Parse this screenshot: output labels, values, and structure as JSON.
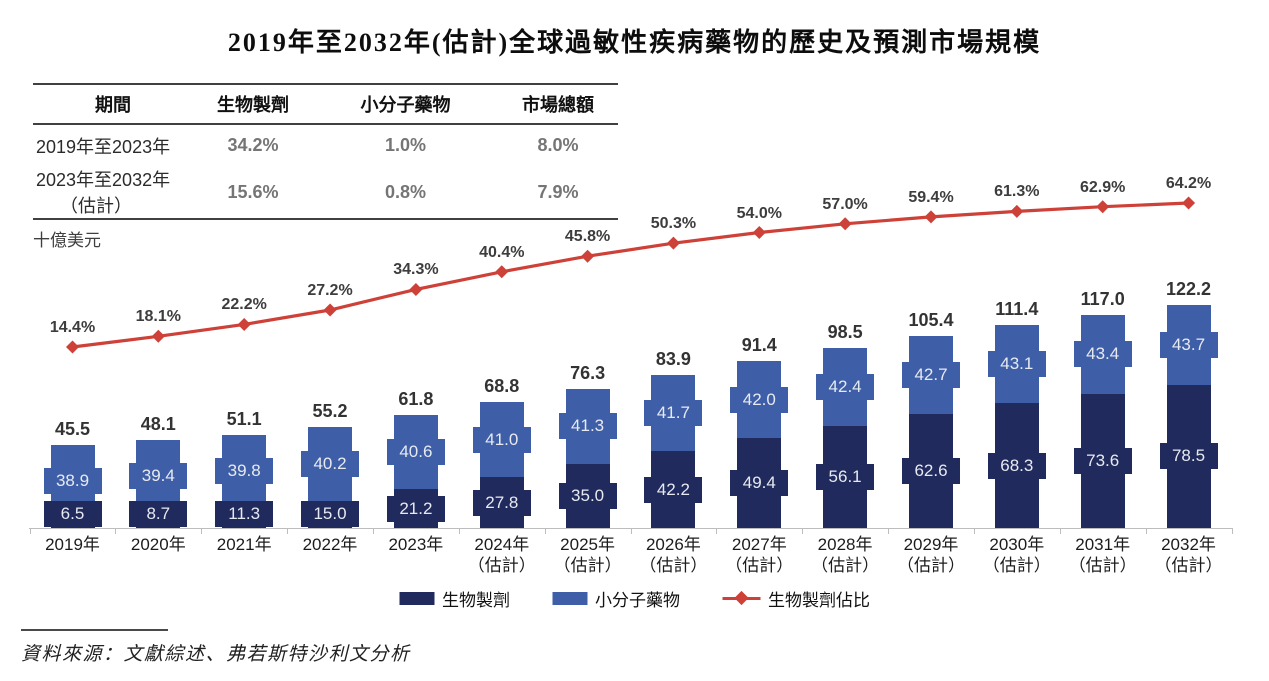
{
  "title": "2019年至2032年(估計)全球過敏性疾病藥物的歷史及預測市場規模",
  "table": {
    "headers": [
      "期間",
      "生物製劑",
      "小分子藥物",
      "市場總額"
    ],
    "rows": [
      {
        "period": "2019年至2023年",
        "period_line2": "",
        "biologics": "34.2%",
        "small_molecule": "1.0%",
        "total": "8.0%"
      },
      {
        "period": "2023年至2032年",
        "period_line2": "（估計）",
        "biologics": "15.6%",
        "small_molecule": "0.8%",
        "total": "7.9%"
      }
    ]
  },
  "unit_label": "十億美元",
  "legend": {
    "biologics": "生物製劑",
    "small_molecule": "小分子藥物",
    "biologics_share": "生物製劑佔比"
  },
  "source": "資料來源：文獻綜述、弗若斯特沙利文分析",
  "chart_data": {
    "type": "bar",
    "stacked": true,
    "overlay": "line",
    "title": "2019年至2032年(估計)全球過敏性疾病藥物的歷史及預測市場規模",
    "unit": "十億美元",
    "categories": [
      "2019年",
      "2020年",
      "2021年",
      "2022年",
      "2023年",
      "2024年",
      "2025年",
      "2026年",
      "2027年",
      "2028年",
      "2029年",
      "2030年",
      "2031年",
      "2032年"
    ],
    "estimate_from_index": 5,
    "estimate_suffix": "（估計）",
    "series": [
      {
        "name": "生物製劑",
        "type": "bar",
        "color": "#202A5C",
        "values": [
          6.5,
          8.7,
          11.3,
          15.0,
          21.2,
          27.8,
          35.0,
          42.2,
          49.4,
          56.1,
          62.6,
          68.3,
          73.6,
          78.5
        ]
      },
      {
        "name": "小分子藥物",
        "type": "bar",
        "color": "#3E5FA8",
        "values": [
          38.9,
          39.4,
          39.8,
          40.2,
          40.6,
          41.0,
          41.3,
          41.7,
          42.0,
          42.4,
          42.7,
          43.1,
          43.4,
          43.7
        ]
      },
      {
        "name": "生物製劑佔比",
        "type": "line",
        "color": "#CD4138",
        "unit": "%",
        "values": [
          14.4,
          18.1,
          22.2,
          27.2,
          34.3,
          40.4,
          45.8,
          50.3,
          54.0,
          57.0,
          59.4,
          61.3,
          62.9,
          64.2
        ]
      }
    ],
    "totals": [
      45.5,
      48.1,
      51.1,
      55.2,
      61.8,
      68.8,
      76.3,
      83.9,
      91.4,
      98.5,
      105.4,
      111.4,
      117.0,
      122.2
    ],
    "ylim": [
      0,
      130
    ],
    "grid": false,
    "legend_position": "bottom"
  }
}
